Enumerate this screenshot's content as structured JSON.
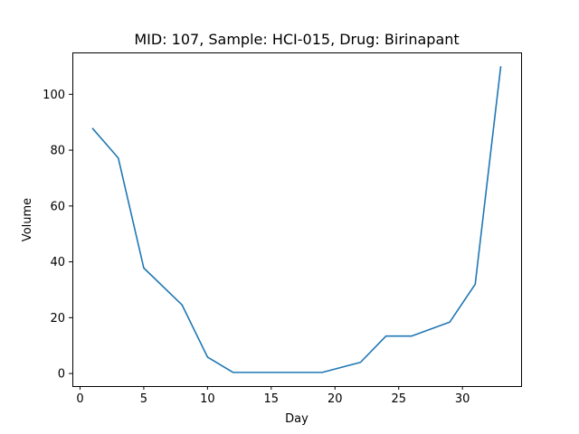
{
  "chart_data": {
    "type": "line",
    "title": "MID: 107, Sample: HCI-015, Drug: Birinapant",
    "xlabel": "Day",
    "ylabel": "Volume",
    "xlim": [
      -0.6,
      34.6
    ],
    "ylim": [
      -4.5,
      115.0
    ],
    "xticks": [
      0,
      5,
      10,
      15,
      20,
      25,
      30
    ],
    "yticks": [
      0,
      20,
      40,
      60,
      80,
      100
    ],
    "grid": false,
    "series": [
      {
        "color": "#1f77b4",
        "x": [
          1,
          3,
          5,
          8,
          10,
          12,
          15,
          17,
          19,
          22,
          24,
          26,
          29,
          31,
          33
        ],
        "y": [
          87.7,
          77.2,
          37.8,
          24.6,
          5.9,
          0.4,
          0.4,
          0.4,
          0.4,
          4.0,
          13.4,
          13.4,
          18.4,
          32.0,
          109.8
        ]
      }
    ]
  }
}
